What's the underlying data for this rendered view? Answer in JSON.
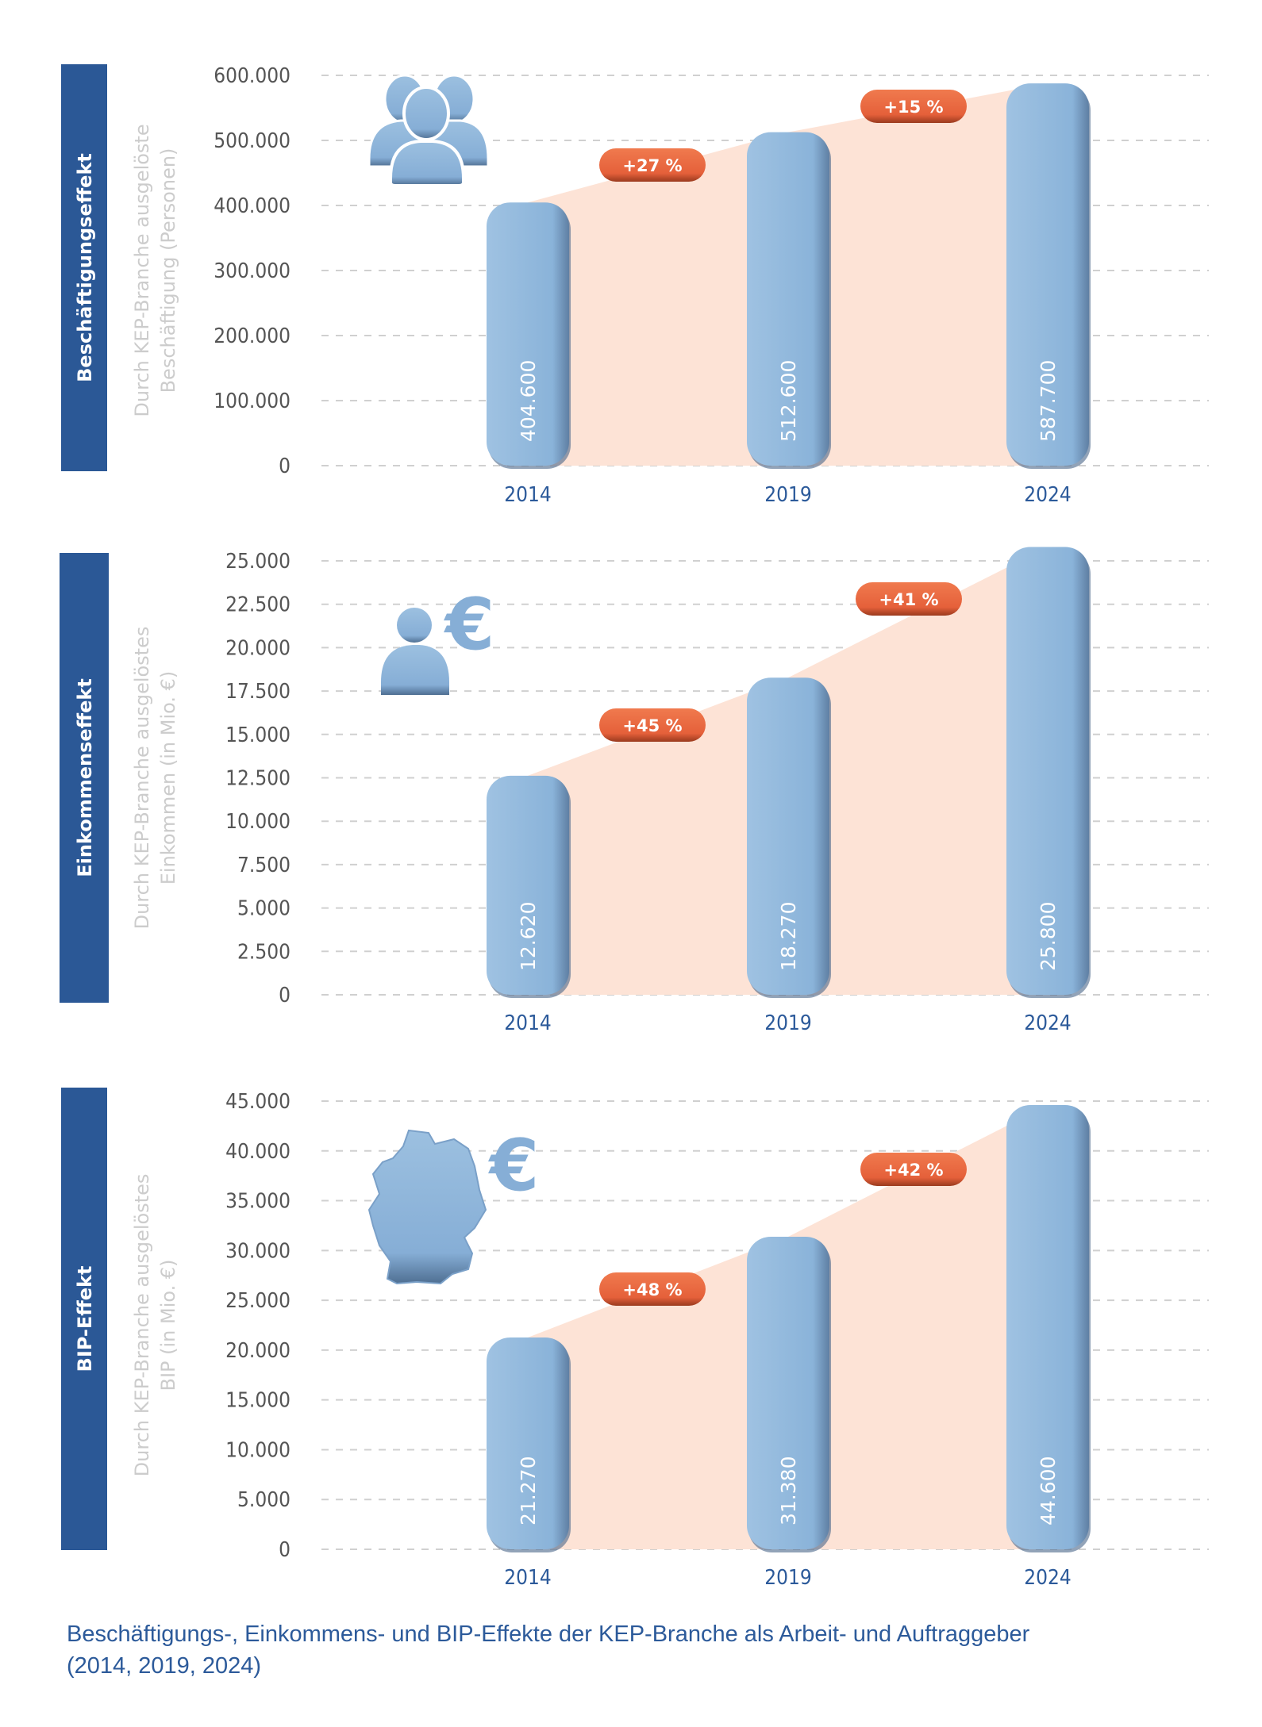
{
  "colors": {
    "sidebar": "#2b5896",
    "bar": "#8ab3d9",
    "bar_dark": "#4f6f92",
    "area": "#fde3d6",
    "badge": "#e8643a",
    "axis_text": "#555555",
    "axis_title": "#cccccc",
    "year": "#2c5a9a",
    "grid": "#d0d0d0"
  },
  "chart_data": [
    {
      "type": "bar",
      "section_label": "Beschäftigungseffekt",
      "ylabel_lines": [
        "Durch KEP-Branche ausgelöste",
        "Beschäftigung (Personen)"
      ],
      "icon": "people-group-icon",
      "categories": [
        "2014",
        "2019",
        "2024"
      ],
      "values": [
        404600,
        512600,
        587700
      ],
      "value_labels": [
        "404.600",
        "512.600",
        "587.700"
      ],
      "growth_labels": [
        "+27 %",
        "+15 %"
      ],
      "ylim": [
        0,
        600000
      ],
      "yticks": [
        0,
        100000,
        200000,
        300000,
        400000,
        500000,
        600000
      ],
      "ytick_labels": [
        "0",
        "100.000",
        "200.000",
        "300.000",
        "400.000",
        "500.000",
        "600.000"
      ],
      "grid": true
    },
    {
      "type": "bar",
      "section_label": "Einkommenseffekt",
      "ylabel_lines": [
        "Durch KEP-Branche ausgelöstes",
        "Einkommen (in Mio. €)"
      ],
      "icon": "person-euro-icon",
      "categories": [
        "2014",
        "2019",
        "2024"
      ],
      "values": [
        12620,
        18270,
        25800
      ],
      "value_labels": [
        "12.620",
        "18.270",
        "25.800"
      ],
      "growth_labels": [
        "+45  %",
        "+41 %"
      ],
      "ylim": [
        0,
        25000
      ],
      "yticks": [
        0,
        2500,
        5000,
        7500,
        10000,
        12500,
        15000,
        17500,
        20000,
        22500,
        25000
      ],
      "ytick_labels": [
        "0",
        "2.500",
        "5.000",
        "7.500",
        "10.000",
        "12.500",
        "15.000",
        "17.500",
        "20.000",
        "22.500",
        "25.000"
      ],
      "grid": true
    },
    {
      "type": "bar",
      "section_label": "BIP-Effekt",
      "ylabel_lines": [
        "Durch KEP-Branche ausgelöstes",
        "BIP (in Mio. €)"
      ],
      "icon": "germany-euro-icon",
      "categories": [
        "2014",
        "2019",
        "2024"
      ],
      "values": [
        21270,
        31380,
        44600
      ],
      "value_labels": [
        "21.270",
        "31.380",
        "44.600"
      ],
      "growth_labels": [
        "+48 %",
        "+42 %"
      ],
      "ylim": [
        0,
        45000
      ],
      "yticks": [
        0,
        5000,
        10000,
        15000,
        20000,
        25000,
        30000,
        35000,
        40000,
        45000
      ],
      "ytick_labels": [
        "0",
        "5.000",
        "10.000",
        "15.000",
        "20.000",
        "25.000",
        "30.000",
        "35.000",
        "40.000",
        "45.000"
      ],
      "grid": true
    }
  ],
  "euro_symbol": "€",
  "caption": {
    "line1": "Beschäftigungs-, Einkommens- und BIP-Effekte der KEP-Branche als Arbeit- und Auftraggeber",
    "line2": "(2014, 2019, 2024)"
  }
}
